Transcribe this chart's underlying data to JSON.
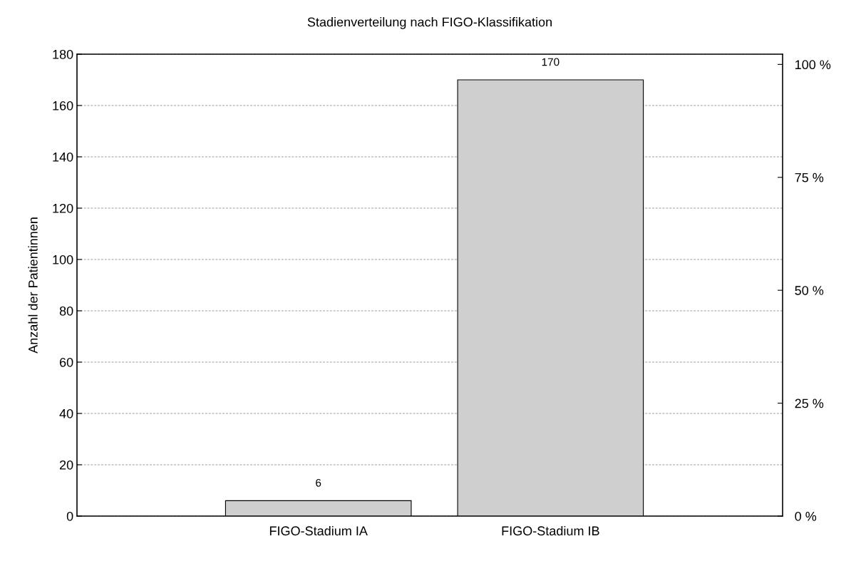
{
  "chart_data": {
    "type": "bar",
    "title": "Stadienverteilung nach FIGO-Klassifikation",
    "ylabel": "Anzahl der Patientinnen",
    "categories": [
      "FIGO-Stadium IA",
      "FIGO-Stadium IB"
    ],
    "values": [
      6,
      170
    ],
    "color": "#cfcfcf",
    "data_labels": true,
    "ylim": [
      0,
      180
    ],
    "yticks": [
      0,
      20,
      40,
      60,
      80,
      100,
      120,
      140,
      160,
      180
    ],
    "y2lim": [
      0,
      102.27
    ],
    "y2ticks": [
      {
        "value": 0,
        "label": "0 %"
      },
      {
        "value": 25,
        "label": "25 %"
      },
      {
        "value": 50,
        "label": "50 %"
      },
      {
        "value": 75,
        "label": "75 %"
      },
      {
        "value": 100,
        "label": "100 %"
      }
    ],
    "grid": "y",
    "legend": false
  }
}
